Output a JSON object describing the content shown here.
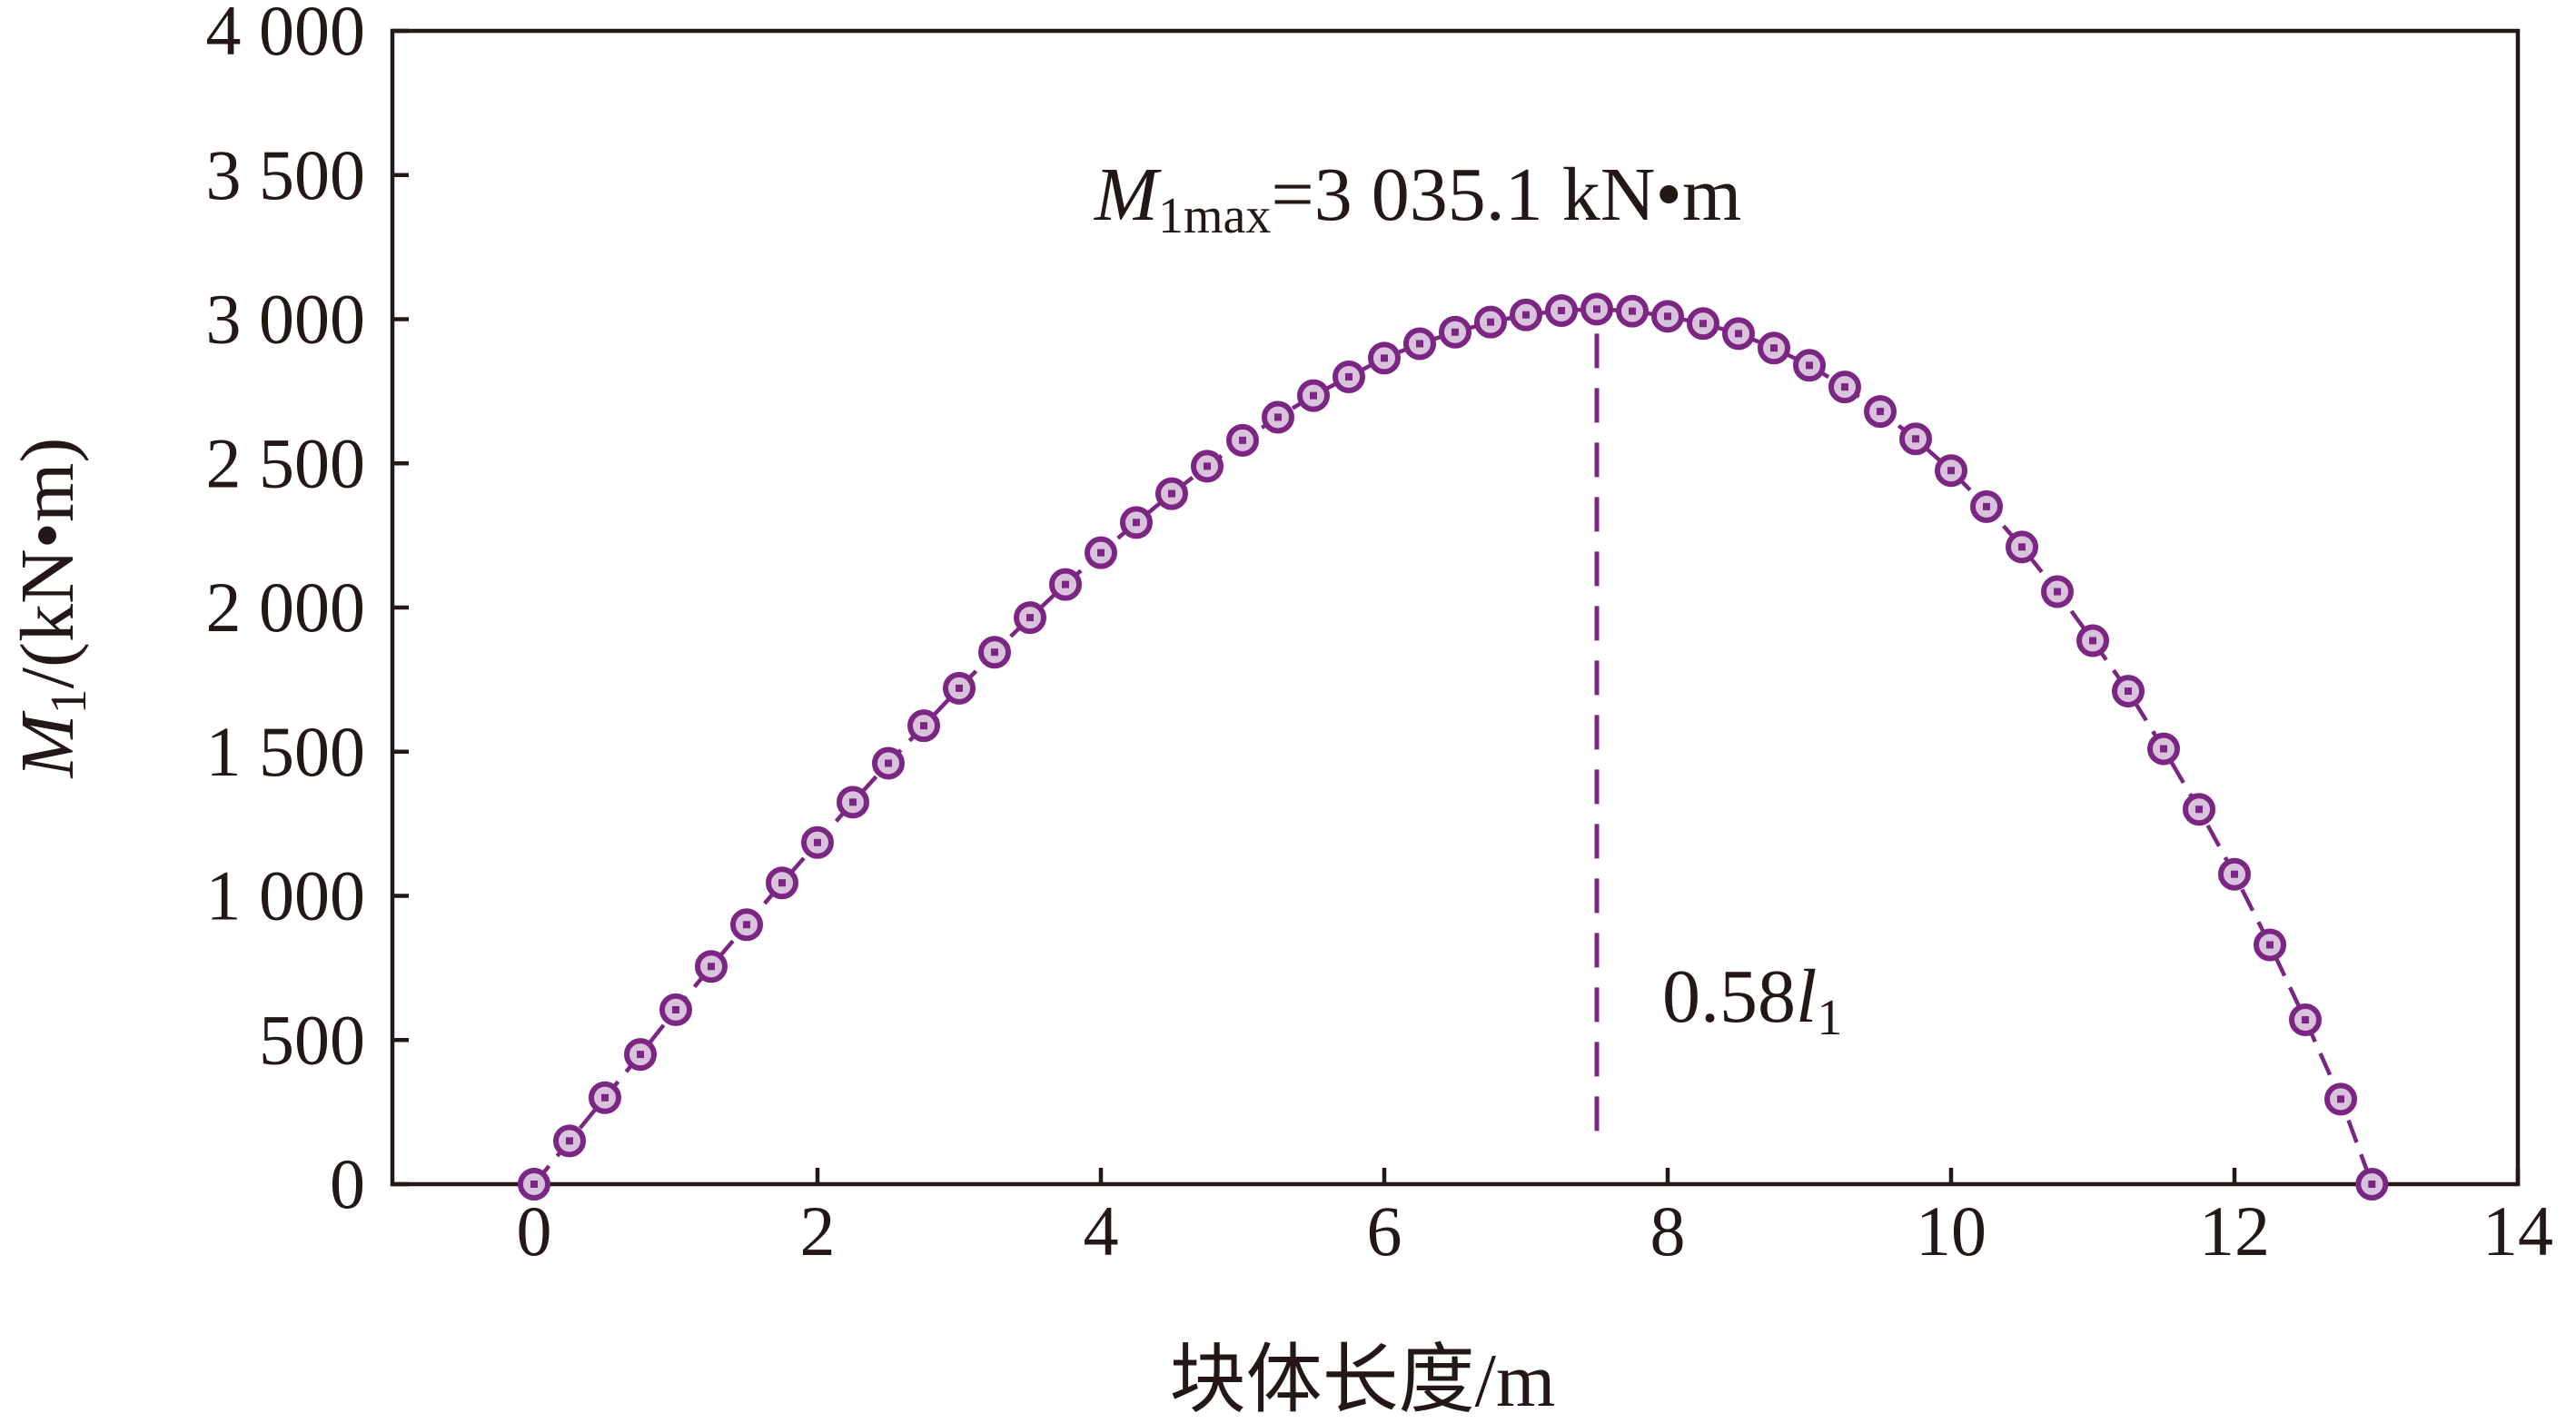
{
  "chart_data": {
    "type": "scatter",
    "x": [
      0,
      0.25,
      0.5,
      0.75,
      1.0,
      1.25,
      1.5,
      1.75,
      2.0,
      2.25,
      2.5,
      2.75,
      3.0,
      3.25,
      3.5,
      3.75,
      4.0,
      4.25,
      4.5,
      4.75,
      5.0,
      5.25,
      5.5,
      5.75,
      6.0,
      6.25,
      6.5,
      6.75,
      7.0,
      7.25,
      7.5,
      7.75,
      8.0,
      8.25,
      8.5,
      8.75,
      9.0,
      9.25,
      9.5,
      9.75,
      10.0,
      10.25,
      10.5,
      10.75,
      11.0,
      11.25,
      11.5,
      11.75,
      12.0,
      12.25,
      12.5,
      12.75,
      12.97
    ],
    "series": [
      {
        "values": [
          0,
          150,
          300,
          450,
          605,
          755,
          900,
          1045,
          1185,
          1325,
          1460,
          1590,
          1720,
          1845,
          1965,
          2080,
          2190,
          2295,
          2395,
          2490,
          2580,
          2660,
          2735,
          2800,
          2865,
          2915,
          2955,
          2990,
          3015,
          3030,
          3035,
          3028,
          3010,
          2985,
          2950,
          2900,
          2840,
          2765,
          2680,
          2585,
          2475,
          2350,
          2210,
          2055,
          1885,
          1710,
          1510,
          1300,
          1075,
          830,
          570,
          295,
          0
        ],
        "color": "#7b2683"
      }
    ],
    "xlabel": "块体长度/m",
    "ylabel": "M1/(kN•m)",
    "xlim": [
      -1,
      14
    ],
    "ylim": [
      0,
      4000
    ],
    "xticks": [
      0,
      2,
      4,
      6,
      8,
      10,
      12,
      14
    ],
    "yticks": [
      0,
      500,
      1000,
      1500,
      2000,
      2500,
      3000,
      3500,
      4000
    ],
    "xtick_labels": [
      "0",
      "2",
      "4",
      "6",
      "8",
      "10",
      "12",
      "14"
    ],
    "ytick_labels": [
      "0",
      "500",
      "1 000",
      "1 500",
      "2 000",
      "2 500",
      "3 000",
      "3 500",
      "4 000"
    ],
    "grid": false,
    "vline": {
      "x": 7.5,
      "color": "#7b2683"
    },
    "annotations": {
      "max_label_sym": "M",
      "max_label_sub": "1max",
      "max_label_rest": "=3 035.1 kN•m",
      "pos_label_num": "0.58",
      "pos_label_sym": "l",
      "pos_label_sub": "1"
    },
    "ylabel_parts": {
      "sym": "M",
      "sub": "1",
      "rest": "/(kN•m)"
    }
  }
}
